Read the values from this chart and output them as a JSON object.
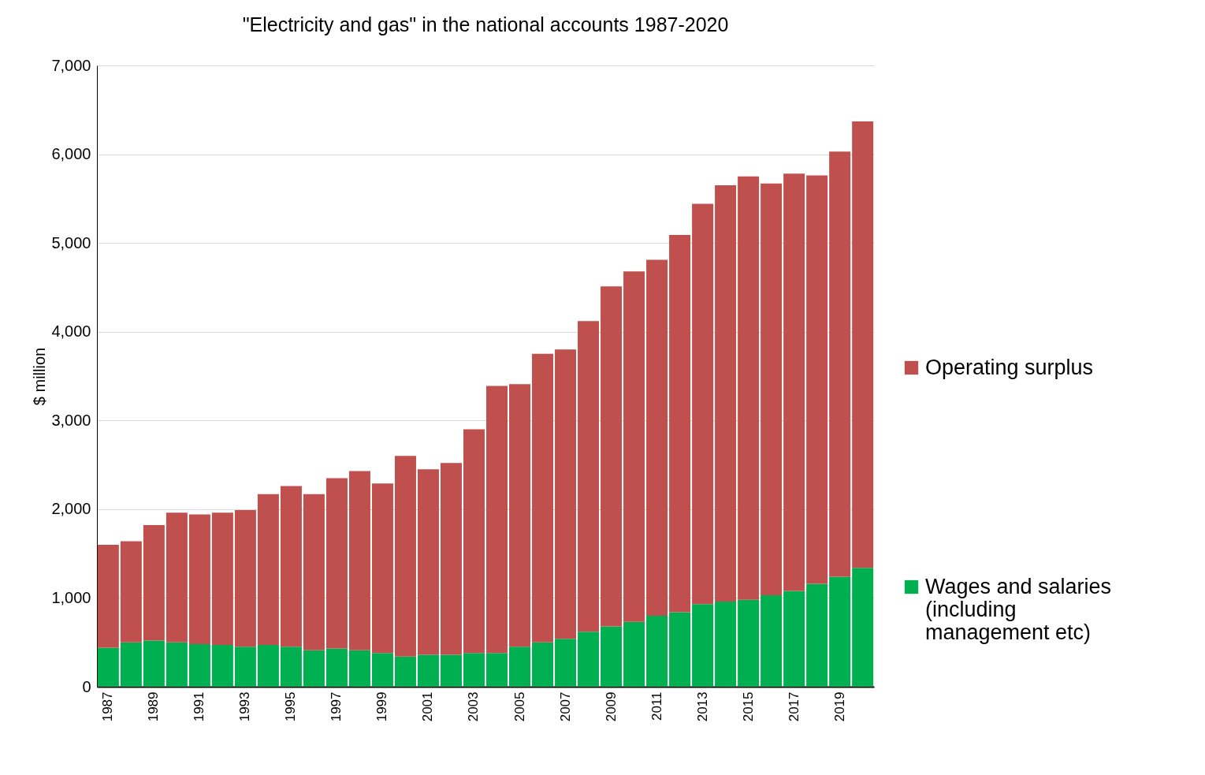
{
  "chart_data": {
    "type": "bar",
    "title": "\"Electricity and gas\" in the national accounts 1987-2020",
    "ylabel": "$ million",
    "categories": [
      "1987",
      null,
      "1989",
      null,
      "1991",
      null,
      "1993",
      null,
      "1995",
      null,
      "1997",
      null,
      "1999",
      null,
      "2001",
      null,
      "2003",
      null,
      "2005",
      null,
      "2007",
      null,
      "2009",
      null,
      "2011",
      null,
      "2013",
      null,
      "2015",
      null,
      "2017",
      null,
      "2019",
      null
    ],
    "stacked": true,
    "series": [
      {
        "name": "Wages and salaries (including management etc)",
        "color": "#00b050",
        "values": [
          440,
          500,
          520,
          500,
          480,
          470,
          450,
          470,
          450,
          410,
          430,
          410,
          380,
          340,
          360,
          360,
          380,
          380,
          450,
          500,
          540,
          620,
          680,
          730,
          800,
          840,
          930,
          960,
          980,
          1030,
          1080,
          1160,
          1240,
          1340
        ]
      },
      {
        "name": "Operating surplus",
        "color": "#c0504d",
        "values": [
          1160,
          1140,
          1300,
          1460,
          1460,
          1490,
          1540,
          1700,
          1810,
          1760,
          1920,
          2020,
          1910,
          2260,
          2090,
          2160,
          2520,
          3010,
          2960,
          3250,
          3260,
          3500,
          3830,
          3950,
          4010,
          4250,
          4510,
          4690,
          4770,
          4640,
          4700,
          4600,
          4790,
          5030
        ]
      }
    ],
    "ylim": [
      0,
      7000
    ],
    "yticks": [
      0,
      {
        "value": 1000,
        "label": "1,000"
      },
      {
        "value": 2000,
        "label": "2,000"
      },
      {
        "value": 3000,
        "label": "3,000"
      },
      {
        "value": 4000,
        "label": "4,000"
      },
      {
        "value": 5000,
        "label": "5,000"
      },
      {
        "value": 6000,
        "label": "6,000"
      },
      {
        "value": 7000,
        "label": "7,000"
      }
    ],
    "grid": "y",
    "legend": "right"
  }
}
